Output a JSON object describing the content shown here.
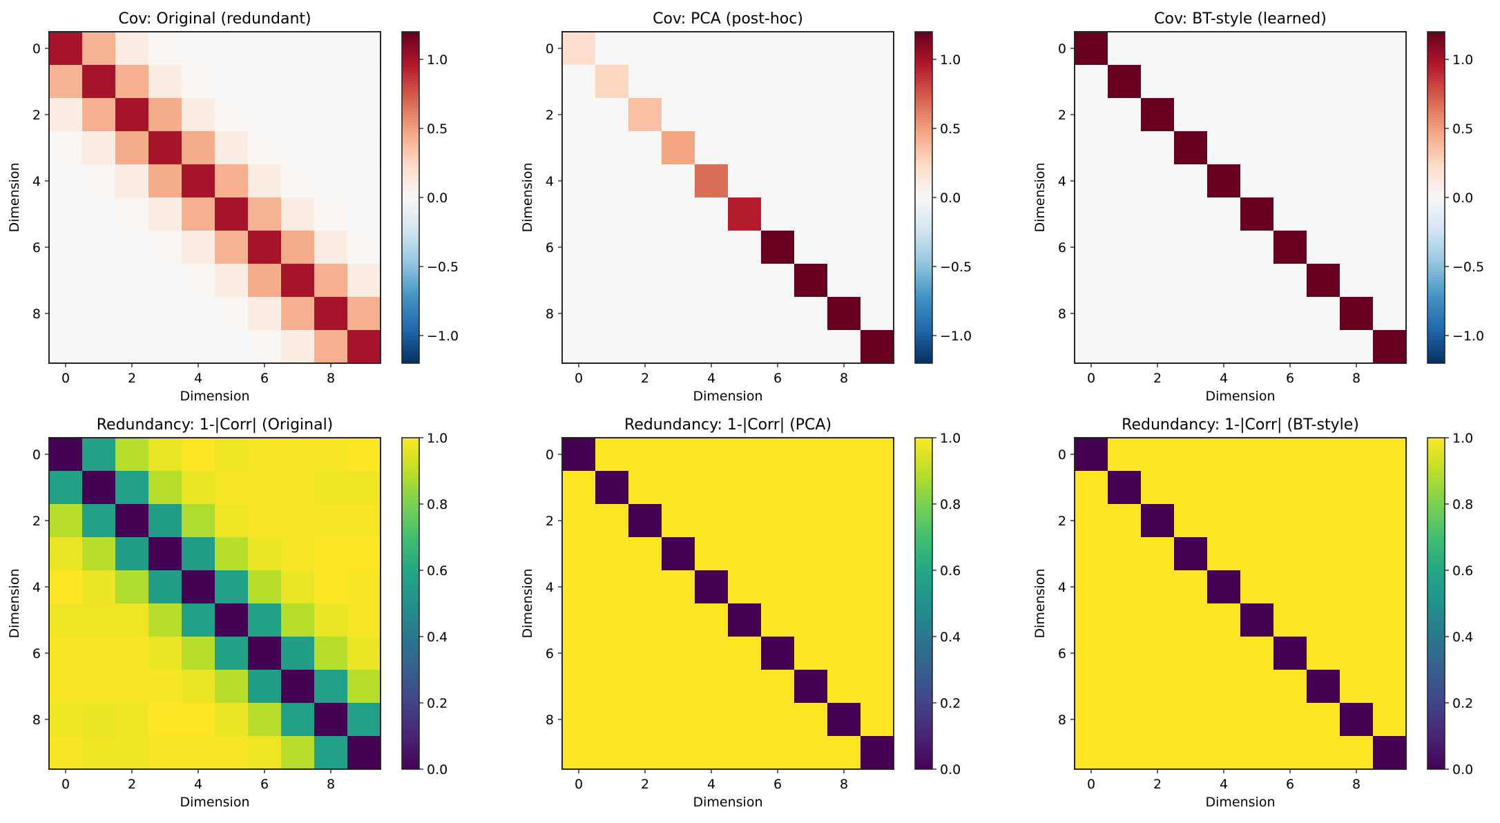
{
  "figure": {
    "layout": "2 rows x 3 columns",
    "background": "#ffffff"
  },
  "chart_data": [
    {
      "type": "heatmap",
      "title": "Cov: Original (redundant)",
      "xlabel": "Dimension",
      "ylabel": "Dimension",
      "x_ticks": [
        "0",
        "2",
        "4",
        "6",
        "8"
      ],
      "y_ticks": [
        "0",
        "2",
        "4",
        "6",
        "8"
      ],
      "x_tick_values": [
        0,
        2,
        4,
        6,
        8
      ],
      "y_tick_values": [
        0,
        2,
        4,
        6,
        8
      ],
      "colormap": "RdBu_r",
      "vmin": -1.2,
      "vmax": 1.2,
      "colorbar_ticks": [
        1.0,
        0.5,
        0.0,
        -0.5,
        -1.0
      ],
      "colorbar_tick_labels": [
        "1.0",
        "0.5",
        "0.0",
        "−0.5",
        "−1.0"
      ],
      "matrix": [
        [
          1.0,
          0.42,
          0.1,
          0.02,
          0.0,
          -0.01,
          -0.01,
          0.0,
          -0.01,
          0.0
        ],
        [
          0.42,
          1.0,
          0.43,
          0.1,
          0.02,
          -0.01,
          -0.01,
          0.0,
          -0.01,
          -0.01
        ],
        [
          0.1,
          0.43,
          1.0,
          0.45,
          0.1,
          0.02,
          0.0,
          0.0,
          -0.01,
          -0.01
        ],
        [
          0.02,
          0.1,
          0.45,
          1.0,
          0.45,
          0.1,
          0.02,
          0.0,
          0.0,
          0.0
        ],
        [
          0.0,
          0.02,
          0.1,
          0.45,
          1.0,
          0.43,
          0.1,
          0.02,
          0.0,
          -0.01
        ],
        [
          -0.01,
          -0.01,
          0.02,
          0.1,
          0.43,
          1.0,
          0.42,
          0.1,
          0.02,
          -0.01
        ],
        [
          -0.01,
          -0.01,
          0.0,
          0.02,
          0.1,
          0.42,
          1.0,
          0.45,
          0.1,
          0.02
        ],
        [
          0.0,
          0.0,
          0.0,
          0.0,
          0.02,
          0.1,
          0.45,
          1.0,
          0.43,
          0.1
        ],
        [
          -0.01,
          -0.01,
          -0.01,
          0.0,
          0.0,
          0.02,
          0.1,
          0.43,
          1.0,
          0.43
        ],
        [
          0.0,
          -0.01,
          -0.01,
          -0.01,
          -0.01,
          -0.01,
          0.02,
          0.1,
          0.43,
          1.0
        ]
      ]
    },
    {
      "type": "heatmap",
      "title": "Cov: PCA (post-hoc)",
      "xlabel": "Dimension",
      "ylabel": "Dimension",
      "x_ticks": [
        "0",
        "2",
        "4",
        "6",
        "8"
      ],
      "y_ticks": [
        "0",
        "2",
        "4",
        "6",
        "8"
      ],
      "x_tick_values": [
        0,
        2,
        4,
        6,
        8
      ],
      "y_tick_values": [
        0,
        2,
        4,
        6,
        8
      ],
      "colormap": "RdBu_r",
      "vmin": -1.2,
      "vmax": 1.2,
      "colorbar_ticks": [
        1.0,
        0.5,
        0.0,
        -0.5,
        -1.0
      ],
      "colorbar_tick_labels": [
        "1.0",
        "0.5",
        "0.0",
        "−0.5",
        "−1.0"
      ],
      "diagonal": [
        0.22,
        0.26,
        0.36,
        0.48,
        0.68,
        0.95,
        1.35,
        1.6,
        1.85,
        2.5
      ],
      "off_diagonal": 0.0
    },
    {
      "type": "heatmap",
      "title": "Cov: BT-style (learned)",
      "xlabel": "Dimension",
      "ylabel": "Dimension",
      "x_ticks": [
        "0",
        "2",
        "4",
        "6",
        "8"
      ],
      "y_ticks": [
        "0",
        "2",
        "4",
        "6",
        "8"
      ],
      "x_tick_values": [
        0,
        2,
        4,
        6,
        8
      ],
      "y_tick_values": [
        0,
        2,
        4,
        6,
        8
      ],
      "colormap": "RdBu_r",
      "vmin": -1.2,
      "vmax": 1.2,
      "colorbar_ticks": [
        1.0,
        0.5,
        0.0,
        -0.5,
        -1.0
      ],
      "colorbar_tick_labels": [
        "1.0",
        "0.5",
        "0.0",
        "−0.5",
        "−1.0"
      ],
      "diagonal": [
        1.3,
        1.3,
        1.3,
        1.3,
        1.3,
        1.3,
        1.3,
        1.3,
        1.3,
        1.3
      ],
      "off_diagonal": 0.0,
      "sparse_entries": [
        {
          "row": 2,
          "col": 4,
          "value": 0.01
        },
        {
          "row": 4,
          "col": 2,
          "value": 0.01
        }
      ]
    },
    {
      "type": "heatmap",
      "title": "Redundancy: 1-|Corr| (Original)",
      "xlabel": "Dimension",
      "ylabel": "Dimension",
      "x_ticks": [
        "0",
        "2",
        "4",
        "6",
        "8"
      ],
      "y_ticks": [
        "0",
        "2",
        "4",
        "6",
        "8"
      ],
      "x_tick_values": [
        0,
        2,
        4,
        6,
        8
      ],
      "y_tick_values": [
        0,
        2,
        4,
        6,
        8
      ],
      "colormap": "viridis",
      "vmin": 0.0,
      "vmax": 1.0,
      "colorbar_ticks": [
        1.0,
        0.8,
        0.6,
        0.4,
        0.2,
        0.0
      ],
      "colorbar_tick_labels": [
        "1.0",
        "0.8",
        "0.6",
        "0.4",
        "0.2",
        "0.0"
      ],
      "matrix": [
        [
          0.0,
          0.57,
          0.89,
          0.97,
          1.0,
          0.98,
          0.99,
          0.99,
          0.99,
          1.0
        ],
        [
          0.57,
          0.0,
          0.56,
          0.89,
          0.97,
          0.99,
          0.99,
          0.99,
          0.98,
          0.98
        ],
        [
          0.89,
          0.56,
          0.0,
          0.55,
          0.88,
          0.98,
          0.99,
          0.99,
          0.99,
          0.99
        ],
        [
          0.97,
          0.89,
          0.55,
          0.0,
          0.55,
          0.89,
          0.97,
          0.99,
          1.0,
          1.0
        ],
        [
          1.0,
          0.97,
          0.88,
          0.55,
          0.0,
          0.56,
          0.89,
          0.97,
          1.0,
          0.99
        ],
        [
          0.98,
          0.98,
          0.98,
          0.89,
          0.56,
          0.0,
          0.57,
          0.89,
          0.97,
          0.99
        ],
        [
          0.99,
          0.99,
          0.99,
          0.97,
          0.89,
          0.57,
          0.0,
          0.55,
          0.89,
          0.97
        ],
        [
          0.99,
          0.99,
          0.99,
          0.99,
          0.97,
          0.89,
          0.55,
          0.0,
          0.56,
          0.89
        ],
        [
          0.98,
          0.97,
          0.98,
          1.0,
          1.0,
          0.97,
          0.89,
          0.56,
          0.0,
          0.56
        ],
        [
          0.99,
          0.98,
          0.98,
          0.99,
          0.99,
          0.99,
          0.98,
          0.89,
          0.56,
          0.0
        ]
      ]
    },
    {
      "type": "heatmap",
      "title": "Redundancy: 1-|Corr| (PCA)",
      "xlabel": "Dimension",
      "ylabel": "Dimension",
      "x_ticks": [
        "0",
        "2",
        "4",
        "6",
        "8"
      ],
      "y_ticks": [
        "0",
        "2",
        "4",
        "6",
        "8"
      ],
      "x_tick_values": [
        0,
        2,
        4,
        6,
        8
      ],
      "y_tick_values": [
        0,
        2,
        4,
        6,
        8
      ],
      "colormap": "viridis",
      "vmin": 0.0,
      "vmax": 1.0,
      "colorbar_ticks": [
        1.0,
        0.8,
        0.6,
        0.4,
        0.2,
        0.0
      ],
      "colorbar_tick_labels": [
        "1.0",
        "0.8",
        "0.6",
        "0.4",
        "0.2",
        "0.0"
      ],
      "diagonal": [
        0,
        0,
        0,
        0,
        0,
        0,
        0,
        0,
        0,
        0
      ],
      "off_diagonal": 1.0
    },
    {
      "type": "heatmap",
      "title": "Redundancy: 1-|Corr| (BT-style)",
      "xlabel": "Dimension",
      "ylabel": "Dimension",
      "x_ticks": [
        "0",
        "2",
        "4",
        "6",
        "8"
      ],
      "y_ticks": [
        "0",
        "2",
        "4",
        "6",
        "8"
      ],
      "x_tick_values": [
        0,
        2,
        4,
        6,
        8
      ],
      "y_tick_values": [
        0,
        2,
        4,
        6,
        8
      ],
      "colormap": "viridis",
      "vmin": 0.0,
      "vmax": 1.0,
      "colorbar_ticks": [
        1.0,
        0.8,
        0.6,
        0.4,
        0.2,
        0.0
      ],
      "colorbar_tick_labels": [
        "1.0",
        "0.8",
        "0.6",
        "0.4",
        "0.2",
        "0.0"
      ],
      "diagonal": [
        0,
        0,
        0,
        0,
        0,
        0,
        0,
        0,
        0,
        0
      ],
      "off_diagonal": 1.0
    }
  ]
}
